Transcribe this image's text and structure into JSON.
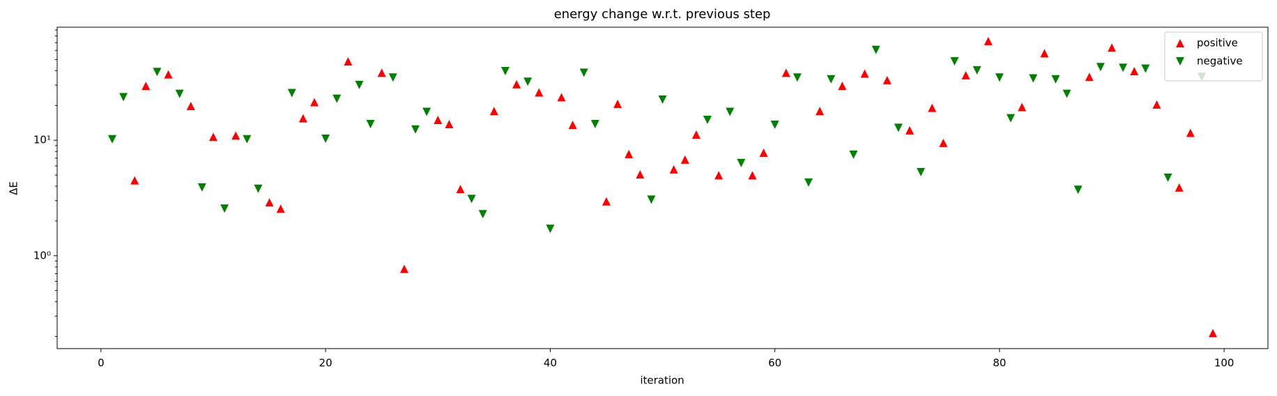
{
  "chart_data": {
    "type": "scatter",
    "title": "energy change w.r.t. previous step",
    "xlabel": "iteration",
    "ylabel": "ΔE",
    "xlim": [
      -3.9,
      103.9
    ],
    "xticks": [
      0,
      20,
      40,
      60,
      80,
      100
    ],
    "ylim": [
      0.157,
      95.3
    ],
    "yscale": "log",
    "yticks": [
      {
        "value": 1,
        "label": "10⁰"
      },
      {
        "value": 10,
        "label": "10¹"
      }
    ],
    "yminorticks": [
      0.2,
      0.3,
      0.4,
      0.5,
      0.6,
      0.7,
      0.8,
      0.9,
      2,
      3,
      4,
      5,
      6,
      7,
      8,
      9,
      20,
      30,
      40,
      50,
      60,
      70,
      80,
      90
    ],
    "legend": "upper right",
    "series": [
      {
        "name": "positive",
        "color": "#ff0000",
        "marker": "triangle-up",
        "x": [
          3,
          4,
          6,
          8,
          10,
          12,
          15,
          16,
          18,
          19,
          22,
          25,
          27,
          30,
          31,
          32,
          35,
          37,
          39,
          41,
          42,
          45,
          46,
          47,
          48,
          51,
          52,
          53,
          55,
          58,
          59,
          61,
          64,
          66,
          68,
          70,
          72,
          74,
          75,
          77,
          79,
          82,
          84,
          88,
          90,
          92,
          94,
          96,
          97,
          99
        ],
        "values": [
          4.5,
          29.6,
          37.2,
          19.8,
          10.7,
          11.0,
          2.9,
          2.56,
          15.5,
          21.4,
          48.2,
          38.4,
          0.77,
          15.0,
          13.8,
          3.78,
          17.9,
          30.6,
          26,
          23.6,
          13.6,
          2.96,
          20.7,
          7.6,
          5.06,
          5.6,
          6.8,
          11.2,
          4.98,
          4.98,
          7.8,
          38.4,
          17.9,
          29.6,
          37.8,
          33.2,
          12.2,
          19.1,
          9.5,
          36.6,
          72.3,
          19.4,
          56.7,
          35.4,
          63.5,
          39.7,
          20.4,
          3.9,
          11.6,
          0.214
        ]
      },
      {
        "name": "negative",
        "color": "#008000",
        "marker": "triangle-down",
        "x": [
          1,
          2,
          5,
          7,
          9,
          11,
          13,
          14,
          17,
          20,
          21,
          23,
          24,
          26,
          28,
          29,
          33,
          34,
          36,
          38,
          40,
          43,
          44,
          49,
          50,
          54,
          56,
          57,
          60,
          62,
          63,
          65,
          67,
          69,
          71,
          73,
          76,
          78,
          80,
          81,
          83,
          85,
          86,
          87,
          89,
          91,
          93,
          95,
          98
        ],
        "values": [
          10.2,
          23.6,
          39,
          25.2,
          3.9,
          2.56,
          10.2,
          3.8,
          25.6,
          10.3,
          22.9,
          30.1,
          13.8,
          34.9,
          12.4,
          17.6,
          3.1,
          2.29,
          39.7,
          32.1,
          1.71,
          38.4,
          13.8,
          3.06,
          22.5,
          15.0,
          17.6,
          6.35,
          13.6,
          34.9,
          4.3,
          33.7,
          7.5,
          60.5,
          12.8,
          5.3,
          48.2,
          40.3,
          34.9,
          15.5,
          34.3,
          33.7,
          25.2,
          3.72,
          43.0,
          42.4,
          41.7,
          4.74,
          35.4
        ]
      }
    ]
  }
}
